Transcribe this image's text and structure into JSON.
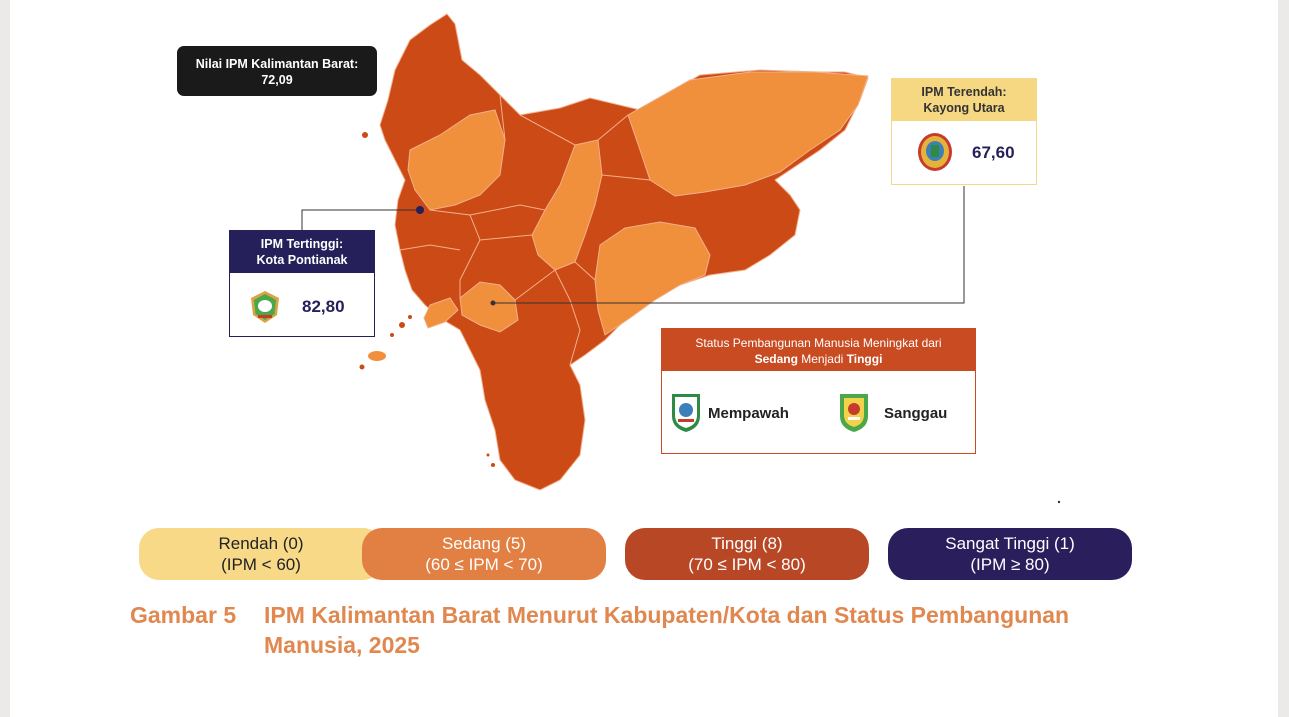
{
  "map_colors": {
    "rendah": "#f8d988",
    "sedang": "#f08f3c",
    "tinggi": "#cc4a16",
    "sangat_tinggi": "#25205a"
  },
  "callouts": {
    "province": {
      "label": "Nilai IPM Kalimantan Barat:",
      "value": "72,09"
    },
    "highest": {
      "label_line1": "IPM Tertinggi:",
      "label_line2": "Kota Pontianak",
      "value": "82,80",
      "icon": "kota-pontianak-emblem-icon"
    },
    "lowest": {
      "label_line1": "IPM Terendah:",
      "label_line2": "Kayong Utara",
      "value": "67,60",
      "icon": "kayong-utara-emblem-icon"
    }
  },
  "status_box": {
    "line1": "Status Pembangunan Manusia Meningkat dari",
    "from": "Sedang",
    "middle": " Menjadi ",
    "to": "Tinggi",
    "regions": [
      {
        "name": "Mempawah",
        "icon": "mempawah-emblem-icon"
      },
      {
        "name": "Sanggau",
        "icon": "sanggau-emblem-icon"
      }
    ]
  },
  "legend": [
    {
      "label": "Rendah (0)",
      "range": "(IPM < 60)",
      "color": "#f8d988",
      "text_color": "#222222"
    },
    {
      "label": "Sedang (5)",
      "range": "(60 ≤ IPM < 70)",
      "color": "#e27f42",
      "text_color": "#ffffff"
    },
    {
      "label": "Tinggi (8)",
      "range": "(70 ≤ IPM < 80)",
      "color": "#b84825",
      "text_color": "#ffffff"
    },
    {
      "label": "Sangat Tinggi (1)",
      "range": "(IPM ≥ 80)",
      "color": "#2a1f5c",
      "text_color": "#ffffff"
    }
  ],
  "caption": {
    "number": "Gambar 5",
    "title": "IPM Kalimantan Barat Menurut Kabupaten/Kota dan Status Pembangunan Manusia, 2025"
  }
}
